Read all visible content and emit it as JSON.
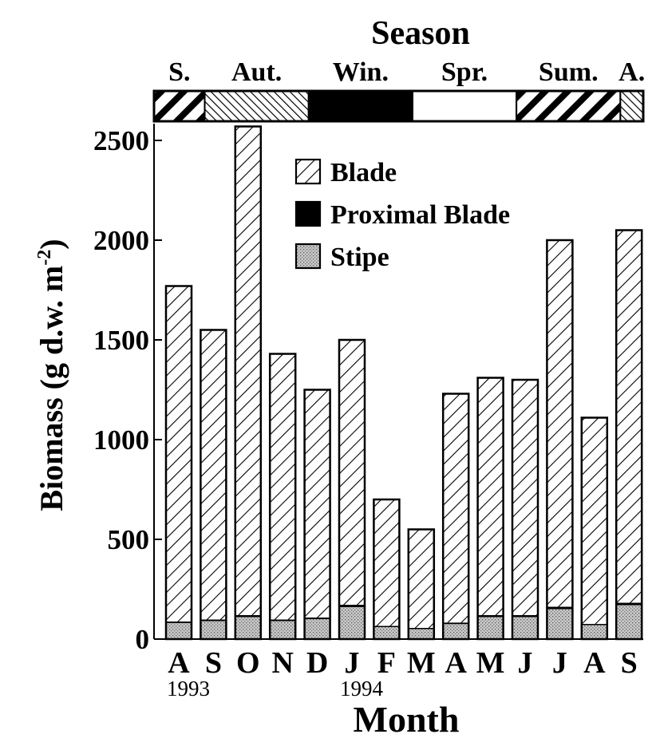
{
  "chart_data": {
    "type": "bar",
    "stacked": true,
    "title": "Season",
    "xlabel": "Month",
    "ylabel": "Biomass (g d.w. m",
    "ylabel_sup": "-2",
    "ylabel_close": ")",
    "ylim": [
      0,
      2500
    ],
    "yticks": [
      0,
      500,
      1000,
      1500,
      2000,
      2500
    ],
    "categories": [
      "A",
      "S",
      "O",
      "N",
      "D",
      "J",
      "F",
      "M",
      "A",
      "M",
      "J",
      "J",
      "A",
      "S"
    ],
    "year_labels": [
      {
        "label": "1993",
        "under_index": 0
      },
      {
        "label": "1994",
        "under_index": 5
      }
    ],
    "seasons": [
      {
        "label": "S.",
        "start": 0,
        "span": 1.25,
        "pattern": "diag-wide"
      },
      {
        "label": "Aut.",
        "start": 1.25,
        "span": 3,
        "pattern": "diag-back"
      },
      {
        "label": "Win.",
        "start": 4.25,
        "span": 3,
        "pattern": "solid"
      },
      {
        "label": "Spr.",
        "start": 7.25,
        "span": 3,
        "pattern": "empty"
      },
      {
        "label": "Sum.",
        "start": 10.25,
        "span": 3,
        "pattern": "diag-wide"
      },
      {
        "label": "A.",
        "start": 13.25,
        "span": 1,
        "pattern": "diag-back"
      }
    ],
    "series": [
      {
        "name": "Stipe",
        "pattern": "stipple",
        "values": [
          80,
          90,
          110,
          90,
          100,
          160,
          60,
          50,
          75,
          110,
          110,
          150,
          70,
          170
        ]
      },
      {
        "name": "Proximal Blade",
        "pattern": "solid",
        "values": [
          8,
          8,
          10,
          8,
          8,
          12,
          6,
          6,
          8,
          10,
          10,
          12,
          6,
          12
        ]
      },
      {
        "name": "Blade",
        "pattern": "hatch",
        "values": [
          1682,
          1452,
          2450,
          1332,
          1142,
          1328,
          634,
          494,
          1147,
          1190,
          1180,
          1838,
          1034,
          1868
        ]
      }
    ],
    "totals": [
      1770,
      1550,
      2570,
      1430,
      1250,
      1500,
      700,
      550,
      1230,
      1310,
      1300,
      2000,
      1110,
      2050
    ],
    "legend": {
      "position": "top-center",
      "entries": [
        "Blade",
        "Proximal Blade",
        "Stipe"
      ]
    },
    "grid": false
  }
}
